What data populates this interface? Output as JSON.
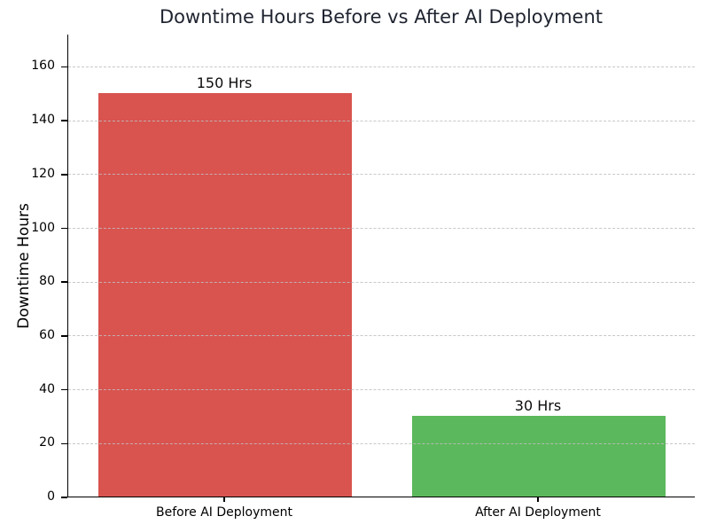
{
  "chart_data": {
    "type": "bar",
    "title": "Downtime Hours Before vs After AI Deployment",
    "title_color": "#1f2430",
    "ylabel": "Downtime Hours",
    "xlabel": "",
    "categories": [
      "Before AI Deployment",
      "After AI Deployment"
    ],
    "values": [
      150,
      30
    ],
    "bar_labels": [
      "150 Hrs",
      "30 Hrs"
    ],
    "bar_colors": [
      "#d9534f",
      "#5cb85c"
    ],
    "ylim": [
      0,
      172
    ],
    "yticks": [
      0,
      20,
      40,
      60,
      80,
      100,
      120,
      140,
      160
    ],
    "grid": "horizontal-dashed",
    "grid_color": "#bebebe",
    "axis_color": "#000000",
    "background_color": "#ffffff",
    "legend": "none"
  }
}
